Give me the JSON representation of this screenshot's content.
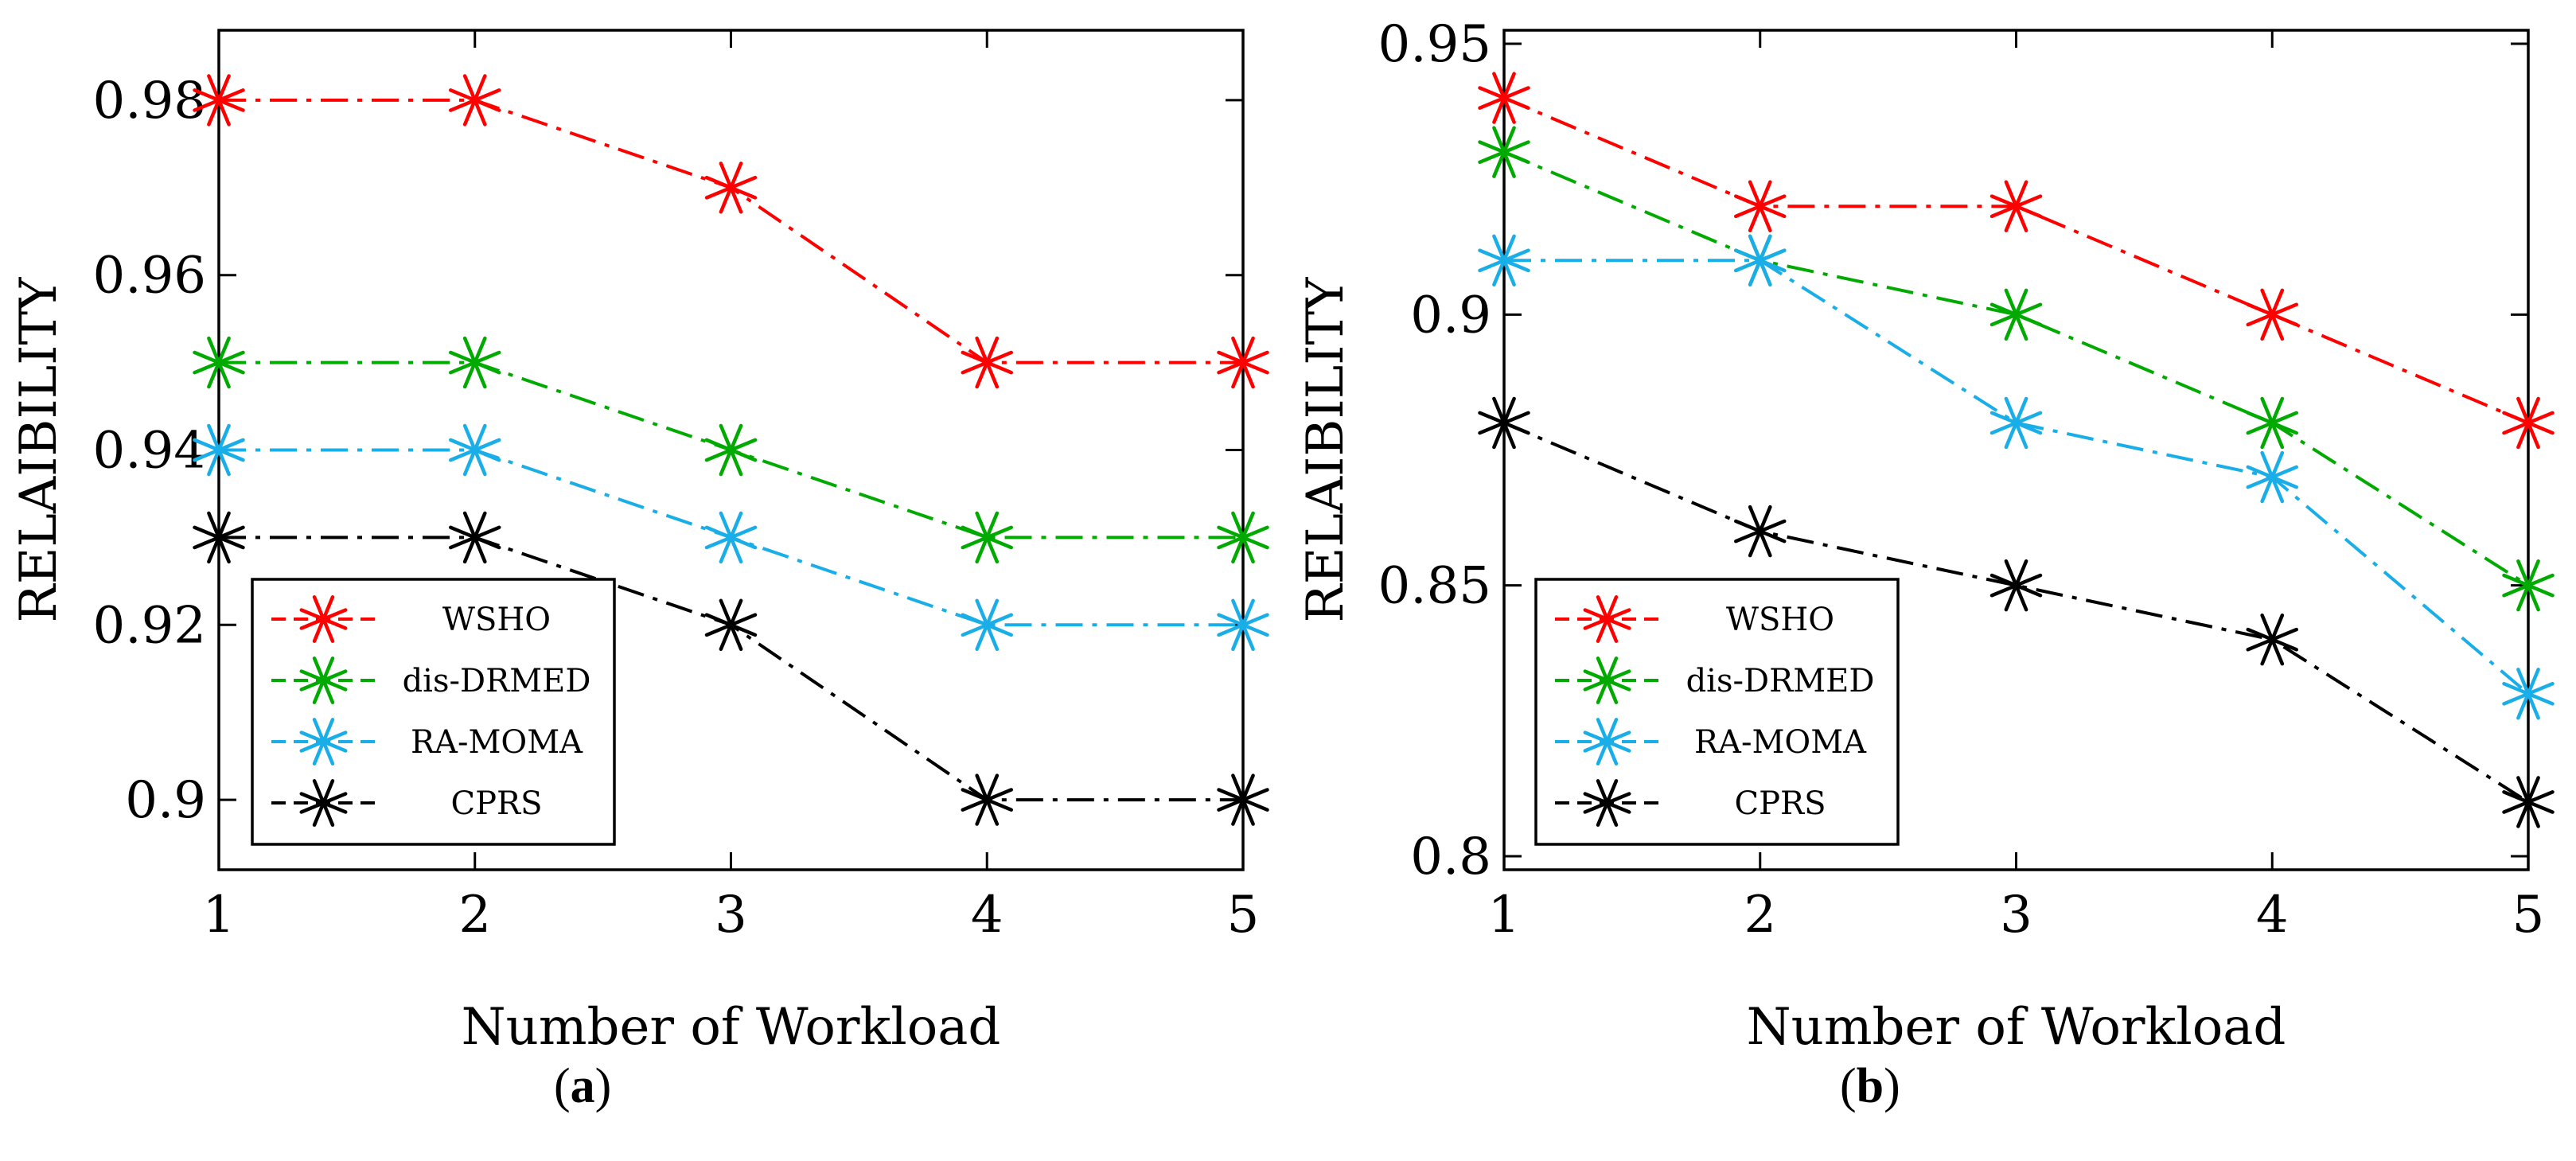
{
  "chart_data": [
    {
      "type": "line",
      "panel_label": "a",
      "xlabel": "Number of Workload",
      "ylabel": "RELAIBILITY",
      "x": [
        1,
        2,
        3,
        4,
        5
      ],
      "xlim": [
        1,
        5
      ],
      "ylim": [
        0.892,
        0.988
      ],
      "yticks": [
        0.9,
        0.92,
        0.94,
        0.96,
        0.98
      ],
      "ytick_labels": [
        "0.9",
        "0.92",
        "0.94",
        "0.96",
        "0.98"
      ],
      "xtick_labels": [
        "1",
        "2",
        "3",
        "4",
        "5"
      ],
      "legend_position": "bottom-left",
      "series": [
        {
          "name": "WSHO",
          "color": "#ff0000",
          "dash": "dashdot",
          "values": [
            0.98,
            0.98,
            0.97,
            0.95,
            0.95
          ]
        },
        {
          "name": "dis-DRMED",
          "color": "#00aa00",
          "dash": "dashdot",
          "values": [
            0.95,
            0.95,
            0.94,
            0.93,
            0.93
          ]
        },
        {
          "name": "RA-MOMA",
          "color": "#1aaee8",
          "dash": "dashdot",
          "values": [
            0.94,
            0.94,
            0.93,
            0.92,
            0.92
          ]
        },
        {
          "name": "CPRS",
          "color": "#000000",
          "dash": "dashdot",
          "values": [
            0.93,
            0.93,
            0.92,
            0.9,
            0.9
          ]
        }
      ]
    },
    {
      "type": "line",
      "panel_label": "b",
      "xlabel": "Number of Workload",
      "ylabel": "RELAIBILITY",
      "x": [
        1,
        2,
        3,
        4,
        5
      ],
      "xlim": [
        1,
        5
      ],
      "ylim": [
        0.7975,
        0.9525
      ],
      "yticks": [
        0.8,
        0.85,
        0.9,
        0.95
      ],
      "ytick_labels": [
        "0.8",
        "0.85",
        "0.9",
        "0.95"
      ],
      "xtick_labels": [
        "1",
        "2",
        "3",
        "4",
        "5"
      ],
      "legend_position": "bottom-left",
      "series": [
        {
          "name": "WSHO",
          "color": "#ff0000",
          "dash": "dashdot",
          "values": [
            0.94,
            0.92,
            0.92,
            0.9,
            0.88
          ]
        },
        {
          "name": "dis-DRMED",
          "color": "#00aa00",
          "dash": "dashdot",
          "values": [
            0.93,
            0.91,
            0.9,
            0.88,
            0.85
          ]
        },
        {
          "name": "RA-MOMA",
          "color": "#1aaee8",
          "dash": "dashdot",
          "values": [
            0.91,
            0.91,
            0.88,
            0.87,
            0.83
          ]
        },
        {
          "name": "CPRS",
          "color": "#000000",
          "dash": "dashdot",
          "values": [
            0.88,
            0.86,
            0.85,
            0.84,
            0.81
          ]
        }
      ]
    }
  ]
}
